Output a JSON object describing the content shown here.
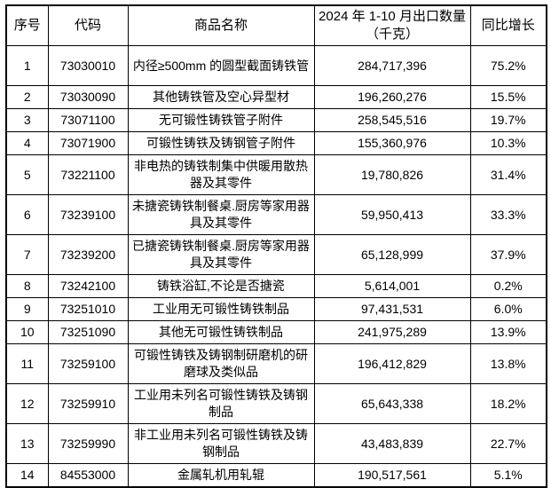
{
  "colors": {
    "background": "#ffffff",
    "border": "#000000",
    "text": "#000000"
  },
  "table": {
    "headers": {
      "no": "序号",
      "code": "代码",
      "name": "商品名称",
      "qty": "2024 年 1-10 月出口数量（千克）",
      "growth": "同比增长"
    },
    "rows": [
      {
        "no": "1",
        "code": "73030010",
        "name": "内径≥500mm 的圆型截面铸铁管",
        "qty": "284,717,396",
        "growth": "75.2%"
      },
      {
        "no": "2",
        "code": "73030090",
        "name": "其他铸铁管及空心异型材",
        "qty": "196,260,276",
        "growth": "15.5%"
      },
      {
        "no": "3",
        "code": "73071100",
        "name": "无可锻性铸铁管子附件",
        "qty": "258,545,516",
        "growth": "19.7%"
      },
      {
        "no": "4",
        "code": "73071900",
        "name": "可锻性铸铁及铸钢管子附件",
        "qty": "155,360,976",
        "growth": "10.3%"
      },
      {
        "no": "5",
        "code": "73221100",
        "name": "非电热的铸铁制集中供暖用散热器及其零件",
        "qty": "19,780,826",
        "growth": "31.4%"
      },
      {
        "no": "6",
        "code": "73239100",
        "name": "未搪瓷铸铁制餐桌.厨房等家用器具及其零件",
        "qty": "59,950,413",
        "growth": "33.3%"
      },
      {
        "no": "7",
        "code": "73239200",
        "name": "已搪瓷铸铁制餐桌.厨房等家用器具及其零件",
        "qty": "65,128,999",
        "growth": "37.9%"
      },
      {
        "no": "8",
        "code": "73242100",
        "name": "铸铁浴缸,不论是否搪瓷",
        "qty": "5,614,001",
        "growth": "0.2%"
      },
      {
        "no": "9",
        "code": "73251010",
        "name": "工业用无可锻性铸铁制品",
        "qty": "97,431,531",
        "growth": "6.0%"
      },
      {
        "no": "10",
        "code": "73251090",
        "name": "其他无可锻性铸铁制品",
        "qty": "241,975,289",
        "growth": "13.9%"
      },
      {
        "no": "11",
        "code": "73259100",
        "name": "可锻性铸铁及铸钢制研磨机的研磨球及类似品",
        "qty": "196,412,829",
        "growth": "13.8%"
      },
      {
        "no": "12",
        "code": "73259910",
        "name": "工业用未列名可锻性铸铁及铸钢制品",
        "qty": "65,643,338",
        "growth": "18.2%"
      },
      {
        "no": "13",
        "code": "73259990",
        "name": "非工业用未列名可锻性铸铁及铸钢制品",
        "qty": "43,483,839",
        "growth": "22.7%"
      },
      {
        "no": "14",
        "code": "84553000",
        "name": "金属轧机用轧辊",
        "qty": "190,517,561",
        "growth": "5.1%"
      }
    ]
  }
}
